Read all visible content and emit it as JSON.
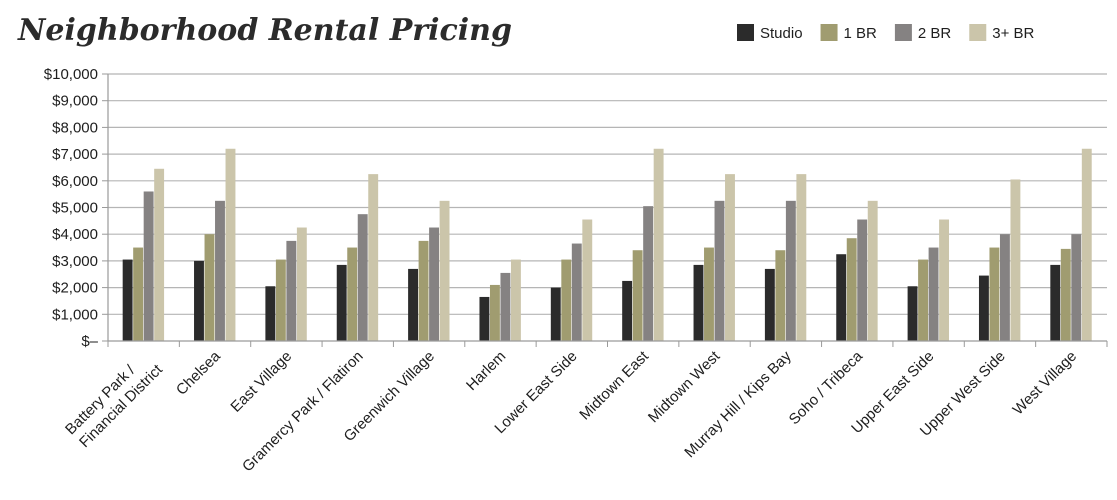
{
  "chart_data": {
    "type": "bar",
    "title": "Neighborhood Rental Pricing",
    "xlabel": "",
    "ylabel": "",
    "ylim": [
      0,
      10000
    ],
    "yticks": [
      0,
      1000,
      2000,
      3000,
      4000,
      5000,
      6000,
      7000,
      8000,
      9000,
      10000
    ],
    "ytick_labels": [
      "$–",
      "$1,000",
      "$2,000",
      "$3,000",
      "$4,000",
      "$5,000",
      "$6,000",
      "$7,000",
      "$8,000",
      "$9,000",
      "$10,000"
    ],
    "grid": true,
    "legend_position": "top-right",
    "categories": [
      "Battery Park / Financial District",
      "Chelsea",
      "East Village",
      "Gramercy Park / Flatiron",
      "Greenwich Village",
      "Harlem",
      "Lower East Side",
      "Midtown East",
      "Midtown West",
      "Murray Hill / Kips Bay",
      "Soho / Tribeca",
      "Upper East Side",
      "Upper West Side",
      "West Village"
    ],
    "category_lines": [
      [
        "Battery Park /",
        "Financial District"
      ],
      [
        "Chelsea"
      ],
      [
        "East Village"
      ],
      [
        "Gramercy Park / Flatiron"
      ],
      [
        "Greenwich Village"
      ],
      [
        "Harlem"
      ],
      [
        "Lower East Side"
      ],
      [
        "Midtown East"
      ],
      [
        "Midtown West"
      ],
      [
        "Murray Hill / Kips Bay"
      ],
      [
        "Soho / Tribeca"
      ],
      [
        "Upper East Side"
      ],
      [
        "Upper West Side"
      ],
      [
        "West Village"
      ]
    ],
    "series": [
      {
        "name": "Studio",
        "color": "#2b2b2b",
        "values": [
          3050,
          3000,
          2050,
          2850,
          2700,
          1650,
          2000,
          2250,
          2850,
          2700,
          3250,
          2050,
          2450,
          2850
        ]
      },
      {
        "name": "1 BR",
        "color": "#a09c70",
        "values": [
          3500,
          4000,
          3050,
          3500,
          3750,
          2100,
          3050,
          3400,
          3500,
          3400,
          3850,
          3050,
          3500,
          3450
        ]
      },
      {
        "name": "2 BR",
        "color": "#858282",
        "values": [
          5600,
          5250,
          3750,
          4750,
          4250,
          2550,
          3650,
          5050,
          5250,
          5250,
          4550,
          3500,
          4000,
          4000
        ]
      },
      {
        "name": "3+ BR",
        "color": "#cbc5aa",
        "values": [
          6450,
          7200,
          4250,
          6250,
          5250,
          3050,
          4550,
          7200,
          6250,
          6250,
          5250,
          4550,
          6050,
          7200
        ]
      }
    ]
  }
}
